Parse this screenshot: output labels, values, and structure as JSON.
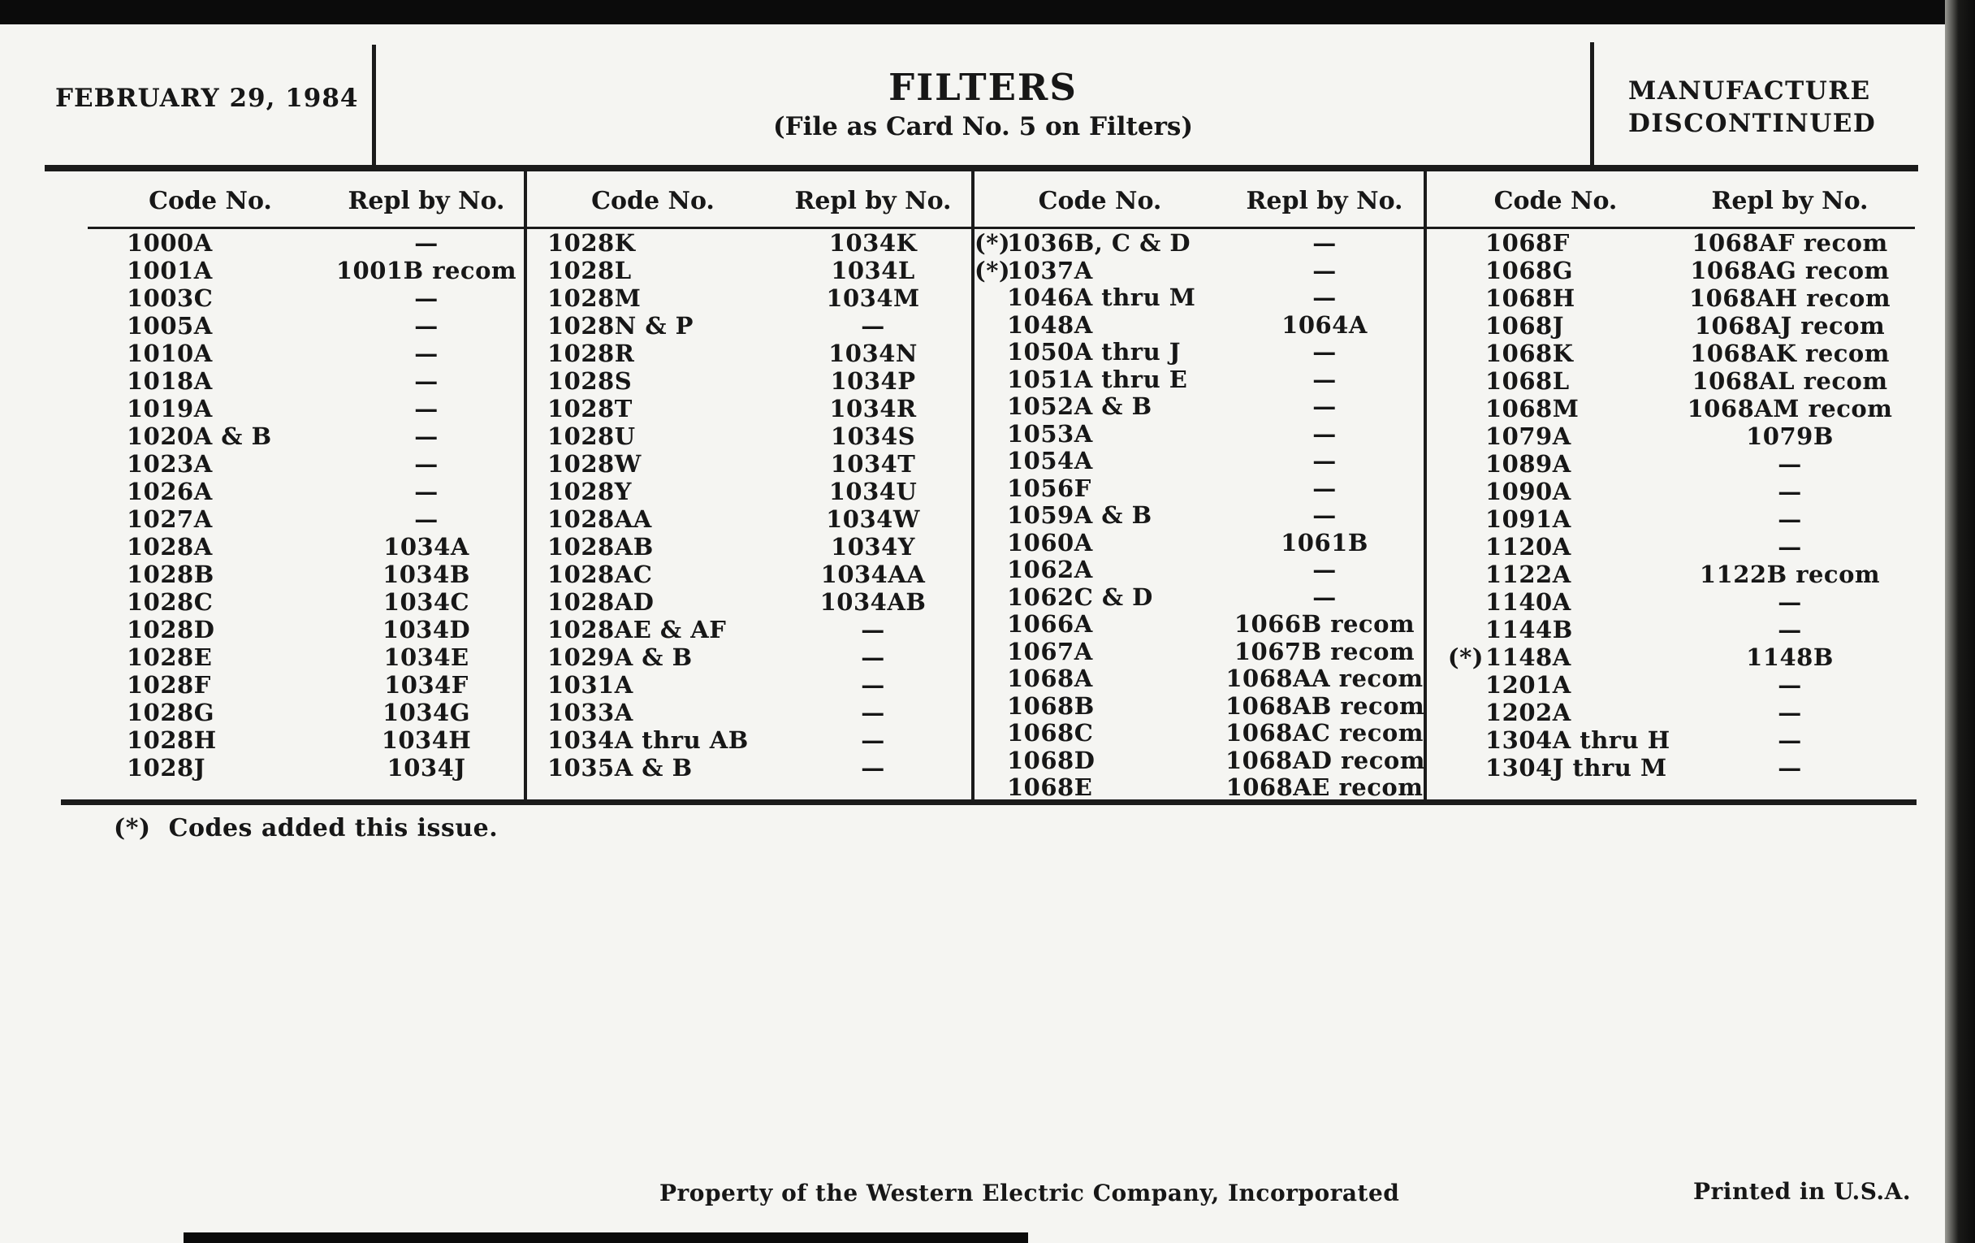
{
  "colors": {
    "paper": "#f5f5f2",
    "ink": "#171717",
    "scan_border": "#0b0b0b"
  },
  "header": {
    "date": "FEBRUARY 29, 1984",
    "title": "FILTERS",
    "subtitle": "(File as Card No. 5 on Filters)",
    "status_line1": "MANUFACTURE",
    "status_line2": "DISCONTINUED"
  },
  "table": {
    "col_headers": {
      "code": "Code No.",
      "repl": "Repl by No."
    },
    "columns": [
      {
        "rows": [
          {
            "star": "",
            "code": "1000A",
            "repl": "—"
          },
          {
            "star": "",
            "code": "1001A",
            "repl": "1001B recom"
          },
          {
            "star": "",
            "code": "1003C",
            "repl": "—"
          },
          {
            "star": "",
            "code": "1005A",
            "repl": "—"
          },
          {
            "star": "",
            "code": "1010A",
            "repl": "—"
          },
          {
            "star": "",
            "code": "1018A",
            "repl": "—"
          },
          {
            "star": "",
            "code": "1019A",
            "repl": "—"
          },
          {
            "star": "",
            "code": "1020A & B",
            "repl": "—"
          },
          {
            "star": "",
            "code": "1023A",
            "repl": "—"
          },
          {
            "star": "",
            "code": "1026A",
            "repl": "—"
          },
          {
            "star": "",
            "code": "1027A",
            "repl": "—"
          },
          {
            "star": "",
            "code": "1028A",
            "repl": "1034A"
          },
          {
            "star": "",
            "code": "1028B",
            "repl": "1034B"
          },
          {
            "star": "",
            "code": "1028C",
            "repl": "1034C"
          },
          {
            "star": "",
            "code": "1028D",
            "repl": "1034D"
          },
          {
            "star": "",
            "code": "1028E",
            "repl": "1034E"
          },
          {
            "star": "",
            "code": "1028F",
            "repl": "1034F"
          },
          {
            "star": "",
            "code": "1028G",
            "repl": "1034G"
          },
          {
            "star": "",
            "code": "1028H",
            "repl": "1034H"
          },
          {
            "star": "",
            "code": "1028J",
            "repl": "1034J"
          }
        ]
      },
      {
        "rows": [
          {
            "star": "",
            "code": "1028K",
            "repl": "1034K"
          },
          {
            "star": "",
            "code": "1028L",
            "repl": "1034L"
          },
          {
            "star": "",
            "code": "1028M",
            "repl": "1034M"
          },
          {
            "star": "",
            "code": "1028N & P",
            "repl": "—"
          },
          {
            "star": "",
            "code": "1028R",
            "repl": "1034N"
          },
          {
            "star": "",
            "code": "1028S",
            "repl": "1034P"
          },
          {
            "star": "",
            "code": "1028T",
            "repl": "1034R"
          },
          {
            "star": "",
            "code": "1028U",
            "repl": "1034S"
          },
          {
            "star": "",
            "code": "1028W",
            "repl": "1034T"
          },
          {
            "star": "",
            "code": "1028Y",
            "repl": "1034U"
          },
          {
            "star": "",
            "code": "1028AA",
            "repl": "1034W"
          },
          {
            "star": "",
            "code": "1028AB",
            "repl": "1034Y"
          },
          {
            "star": "",
            "code": "1028AC",
            "repl": "1034AA"
          },
          {
            "star": "",
            "code": "1028AD",
            "repl": "1034AB"
          },
          {
            "star": "",
            "code": "1028AE & AF",
            "repl": "—"
          },
          {
            "star": "",
            "code": "1029A & B",
            "repl": "—"
          },
          {
            "star": "",
            "code": "1031A",
            "repl": "—"
          },
          {
            "star": "",
            "code": "1033A",
            "repl": "—"
          },
          {
            "star": "",
            "code": "1034A thru AB",
            "repl": "—"
          },
          {
            "star": "",
            "code": "1035A & B",
            "repl": "—"
          }
        ]
      },
      {
        "rows": [
          {
            "star": "(*)",
            "code": "1036B, C & D",
            "repl": "—"
          },
          {
            "star": "(*)",
            "code": "1037A",
            "repl": "—"
          },
          {
            "star": "",
            "code": "1046A thru M",
            "repl": "—"
          },
          {
            "star": "",
            "code": "1048A",
            "repl": "1064A"
          },
          {
            "star": "",
            "code": "1050A thru J",
            "repl": "—"
          },
          {
            "star": "",
            "code": "1051A thru E",
            "repl": "—"
          },
          {
            "star": "",
            "code": "1052A & B",
            "repl": "—"
          },
          {
            "star": "",
            "code": "1053A",
            "repl": "—"
          },
          {
            "star": "",
            "code": "1054A",
            "repl": "—"
          },
          {
            "star": "",
            "code": "1056F",
            "repl": "—"
          },
          {
            "star": "",
            "code": "1059A & B",
            "repl": "—"
          },
          {
            "star": "",
            "code": "1060A",
            "repl": "1061B"
          },
          {
            "star": "",
            "code": "1062A",
            "repl": "—"
          },
          {
            "star": "",
            "code": "1062C & D",
            "repl": "—"
          },
          {
            "star": "",
            "code": "1066A",
            "repl": "1066B recom"
          },
          {
            "star": "",
            "code": "1067A",
            "repl": "1067B recom"
          },
          {
            "star": "",
            "code": "1068A",
            "repl": "1068AA recom"
          },
          {
            "star": "",
            "code": "1068B",
            "repl": "1068AB recom"
          },
          {
            "star": "",
            "code": "1068C",
            "repl": "1068AC recom"
          },
          {
            "star": "",
            "code": "1068D",
            "repl": "1068AD recom"
          },
          {
            "star": "",
            "code": "1068E",
            "repl": "1068AE recom"
          }
        ]
      },
      {
        "rows": [
          {
            "star": "",
            "code": "1068F",
            "repl": "1068AF recom"
          },
          {
            "star": "",
            "code": "1068G",
            "repl": "1068AG recom"
          },
          {
            "star": "",
            "code": "1068H",
            "repl": "1068AH recom"
          },
          {
            "star": "",
            "code": "1068J",
            "repl": "1068AJ recom"
          },
          {
            "star": "",
            "code": "1068K",
            "repl": "1068AK recom"
          },
          {
            "star": "",
            "code": "1068L",
            "repl": "1068AL recom"
          },
          {
            "star": "",
            "code": "1068M",
            "repl": "1068AM recom"
          },
          {
            "star": "",
            "code": "1079A",
            "repl": "1079B"
          },
          {
            "star": "",
            "code": "1089A",
            "repl": "—"
          },
          {
            "star": "",
            "code": "1090A",
            "repl": "—"
          },
          {
            "star": "",
            "code": "1091A",
            "repl": "—"
          },
          {
            "star": "",
            "code": "1120A",
            "repl": "—"
          },
          {
            "star": "",
            "code": "1122A",
            "repl": "1122B recom"
          },
          {
            "star": "",
            "code": "1140A",
            "repl": "—"
          },
          {
            "star": "",
            "code": "1144B",
            "repl": "—"
          },
          {
            "star": "(*)",
            "code": "1148A",
            "repl": "1148B"
          },
          {
            "star": "",
            "code": "1201A",
            "repl": "—"
          },
          {
            "star": "",
            "code": "1202A",
            "repl": "—"
          },
          {
            "star": "",
            "code": "1304A thru H",
            "repl": "—"
          },
          {
            "star": "",
            "code": "1304J thru M",
            "repl": "—"
          }
        ]
      }
    ]
  },
  "footnote": {
    "marker": "(*)",
    "text": "Codes added this issue."
  },
  "footer": {
    "left": "Property of the Western Electric Company, Incorporated",
    "right": "Printed in U.S.A."
  }
}
